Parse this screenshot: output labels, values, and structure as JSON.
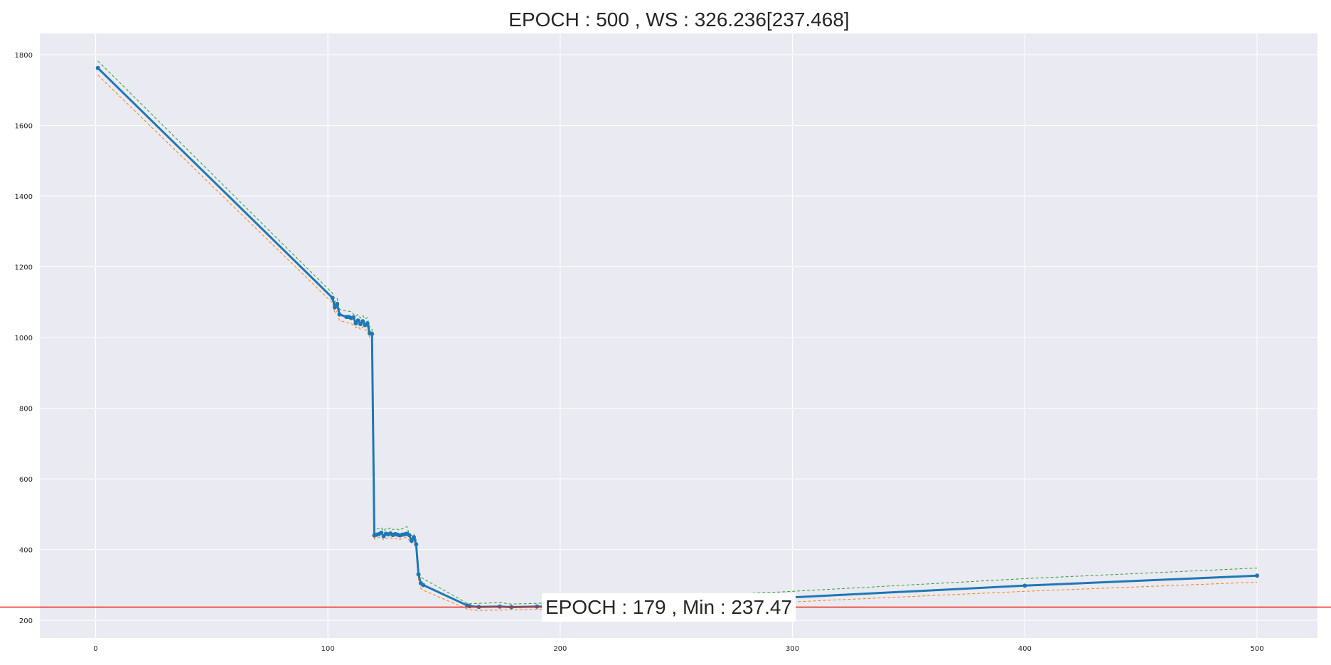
{
  "chart_data": {
    "type": "line",
    "title": "EPOCH : 500 , WS : 326.236[237.468]",
    "xlabel": "",
    "ylabel": "",
    "xlim": [
      -24,
      526
    ],
    "ylim": [
      150,
      1860
    ],
    "xticks": [
      0,
      100,
      200,
      300,
      400,
      500
    ],
    "yticks": [
      200,
      400,
      600,
      800,
      1000,
      1200,
      1400,
      1600,
      1800
    ],
    "grid": true,
    "background": "#eaeaf2",
    "series": [
      {
        "color": "#1f77b4",
        "style": "solid-with-markers",
        "x": [
          1,
          102,
          103,
          104,
          105,
          108,
          109,
          110,
          111,
          112,
          113,
          114,
          115,
          116,
          117,
          118,
          119,
          120,
          121,
          122,
          123,
          124,
          125,
          126,
          127,
          128,
          129,
          130,
          131,
          132,
          133,
          134,
          135,
          136,
          137,
          138,
          139,
          140,
          141,
          160,
          161,
          165,
          174,
          179,
          190,
          200,
          230,
          300,
          400,
          500
        ],
        "y": [
          1762,
          1112,
          1085,
          1095,
          1065,
          1058,
          1058,
          1055,
          1057,
          1040,
          1048,
          1038,
          1046,
          1035,
          1040,
          1012,
          1010,
          440,
          442,
          444,
          448,
          438,
          445,
          443,
          446,
          441,
          444,
          442,
          440,
          442,
          443,
          445,
          441,
          425,
          435,
          415,
          330,
          305,
          300,
          242,
          240,
          238,
          239,
          237.47,
          239,
          240,
          245,
          265,
          298,
          326.236
        ]
      },
      {
        "color": "#2ca02c",
        "style": "dashed",
        "x": [
          1,
          102,
          103,
          104,
          105,
          108,
          110,
          112,
          113,
          114,
          115,
          116,
          117,
          118,
          119,
          120,
          121,
          122,
          123,
          124,
          125,
          126,
          127,
          128,
          129,
          130,
          131,
          132,
          133,
          134,
          135,
          136,
          137,
          138,
          139,
          140,
          141,
          160,
          161,
          165,
          174,
          179,
          190,
          200,
          230,
          300,
          400,
          500
        ],
        "y": [
          1782,
          1125,
          1100,
          1110,
          1080,
          1075,
          1073,
          1060,
          1065,
          1055,
          1062,
          1052,
          1056,
          1030,
          1025,
          455,
          458,
          460,
          462,
          452,
          460,
          458,
          462,
          456,
          459,
          457,
          455,
          460,
          462,
          465,
          445,
          440,
          445,
          428,
          345,
          322,
          318,
          248,
          247,
          248,
          250,
          246,
          248,
          250,
          258,
          282,
          318,
          348
        ]
      },
      {
        "color": "#ff7f0e",
        "style": "dashed",
        "x": [
          1,
          102,
          103,
          104,
          105,
          108,
          110,
          112,
          113,
          114,
          115,
          116,
          117,
          118,
          119,
          120,
          121,
          122,
          123,
          124,
          125,
          126,
          127,
          128,
          129,
          130,
          131,
          132,
          133,
          134,
          135,
          136,
          137,
          138,
          139,
          140,
          141,
          160,
          161,
          165,
          174,
          179,
          190,
          200,
          230,
          300,
          400,
          500
        ],
        "y": [
          1742,
          1098,
          1068,
          1075,
          1048,
          1042,
          1040,
          1028,
          1032,
          1022,
          1030,
          1020,
          1024,
          998,
          995,
          430,
          432,
          434,
          436,
          428,
          433,
          431,
          434,
          430,
          432,
          430,
          428,
          432,
          434,
          433,
          427,
          418,
          423,
          402,
          315,
          290,
          285,
          232,
          230,
          228,
          229,
          230,
          231,
          232,
          236,
          252,
          282,
          308
        ]
      }
    ],
    "hline": {
      "y": 237.47,
      "color": "#e8200e"
    },
    "annotation": {
      "text": "EPOCH : 179 , Min : 237.47"
    }
  }
}
